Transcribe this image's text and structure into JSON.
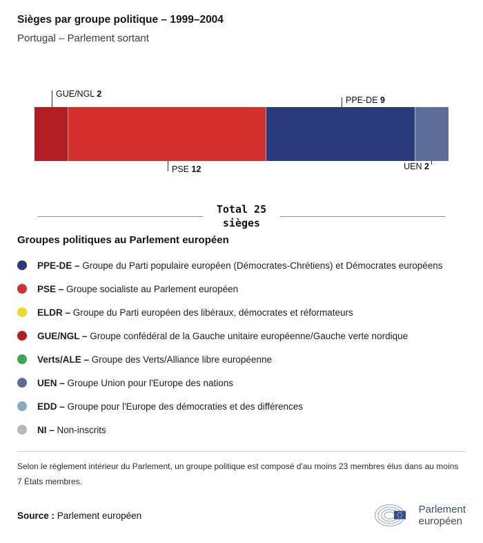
{
  "header": {
    "title": "Sièges par groupe politique – 1999–2004",
    "subtitle": "Portugal – Parlement sortant"
  },
  "chart_data": {
    "type": "bar",
    "orientation": "horizontal-stacked",
    "title": "Sièges par groupe politique – 1999–2004",
    "subtitle": "Portugal – Parlement sortant",
    "total_seats": 25,
    "total_line1": "Total 25",
    "total_line2": "sièges",
    "segments": [
      {
        "group": "GUE/NGL",
        "seats": 2,
        "color": "#b01e23",
        "label_position": "top"
      },
      {
        "group": "PSE",
        "seats": 12,
        "color": "#d4302d",
        "label_position": "bottom"
      },
      {
        "group": "PPE-DE",
        "seats": 9,
        "color": "#2a3a7c",
        "label_position": "top"
      },
      {
        "group": "UEN",
        "seats": 2,
        "color": "#5c6d99",
        "label_position": "bottom"
      }
    ]
  },
  "legend": {
    "heading": "Groupes politiques au Parlement européen",
    "items": [
      {
        "abbr": "PPE-DE –",
        "desc": "Groupe du Parti populaire européen (Démocrates-Chrétiens) et Démocrates européens",
        "color": "#2a3a7c"
      },
      {
        "abbr": "PSE –",
        "desc": "Groupe socialiste au Parlement européen",
        "color": "#d4302d"
      },
      {
        "abbr": "ELDR –",
        "desc": "Groupe du Parti européen des libéraux, démocrates et réformateurs",
        "color": "#efd926"
      },
      {
        "abbr": "GUE/NGL –",
        "desc": "Groupe confédéral de la Gauche unitaire européenne/Gauche verte nordique",
        "color": "#b01e23"
      },
      {
        "abbr": "Verts/ALE –",
        "desc": "Groupe des Verts/Alliance libre européenne",
        "color": "#3fa54c"
      },
      {
        "abbr": "UEN –",
        "desc": "Groupe Union pour l'Europe des nations",
        "color": "#5c6d99"
      },
      {
        "abbr": "EDD –",
        "desc": "Groupe pour l'Europe des démocraties et des différences",
        "color": "#8fa8c2"
      },
      {
        "abbr": "NI –",
        "desc": "Non-inscrits",
        "color": "#b8b8b8"
      }
    ]
  },
  "footnote": "Selon le règlement intérieur du Parlement, un groupe politique est composé d'au moins 23 membres élus dans au moins 7 États membres.",
  "source": {
    "label": "Source :",
    "value": "Parlement européen"
  },
  "logo": {
    "line1": "Parlement",
    "line2": "européen"
  }
}
